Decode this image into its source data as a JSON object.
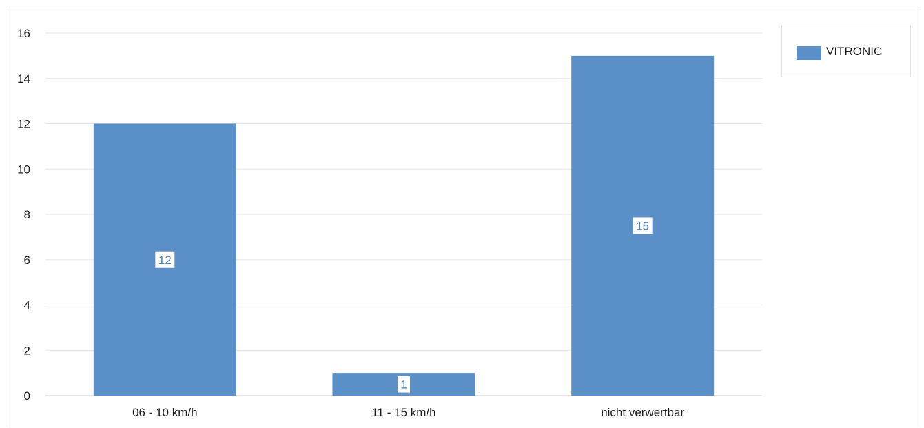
{
  "chart_data": {
    "type": "bar",
    "categories": [
      "06 - 10 km/h",
      "11 - 15 km/h",
      "nicht verwertbar"
    ],
    "series": [
      {
        "name": "VITRONIC",
        "values": [
          12,
          1,
          15
        ]
      }
    ],
    "data_labels": [
      "12",
      "1",
      "15"
    ],
    "title": "",
    "xlabel": "",
    "ylabel": "",
    "ylim": [
      0,
      16
    ],
    "yticks": [
      0,
      2,
      4,
      6,
      8,
      10,
      12,
      14,
      16
    ],
    "grid": true,
    "legend_position": "top-right",
    "colors": {
      "bar": "#5b8fc7",
      "grid": "#e6e6e6",
      "axis": "#c8c8c8"
    }
  },
  "legend": {
    "label": "VITRONIC"
  }
}
